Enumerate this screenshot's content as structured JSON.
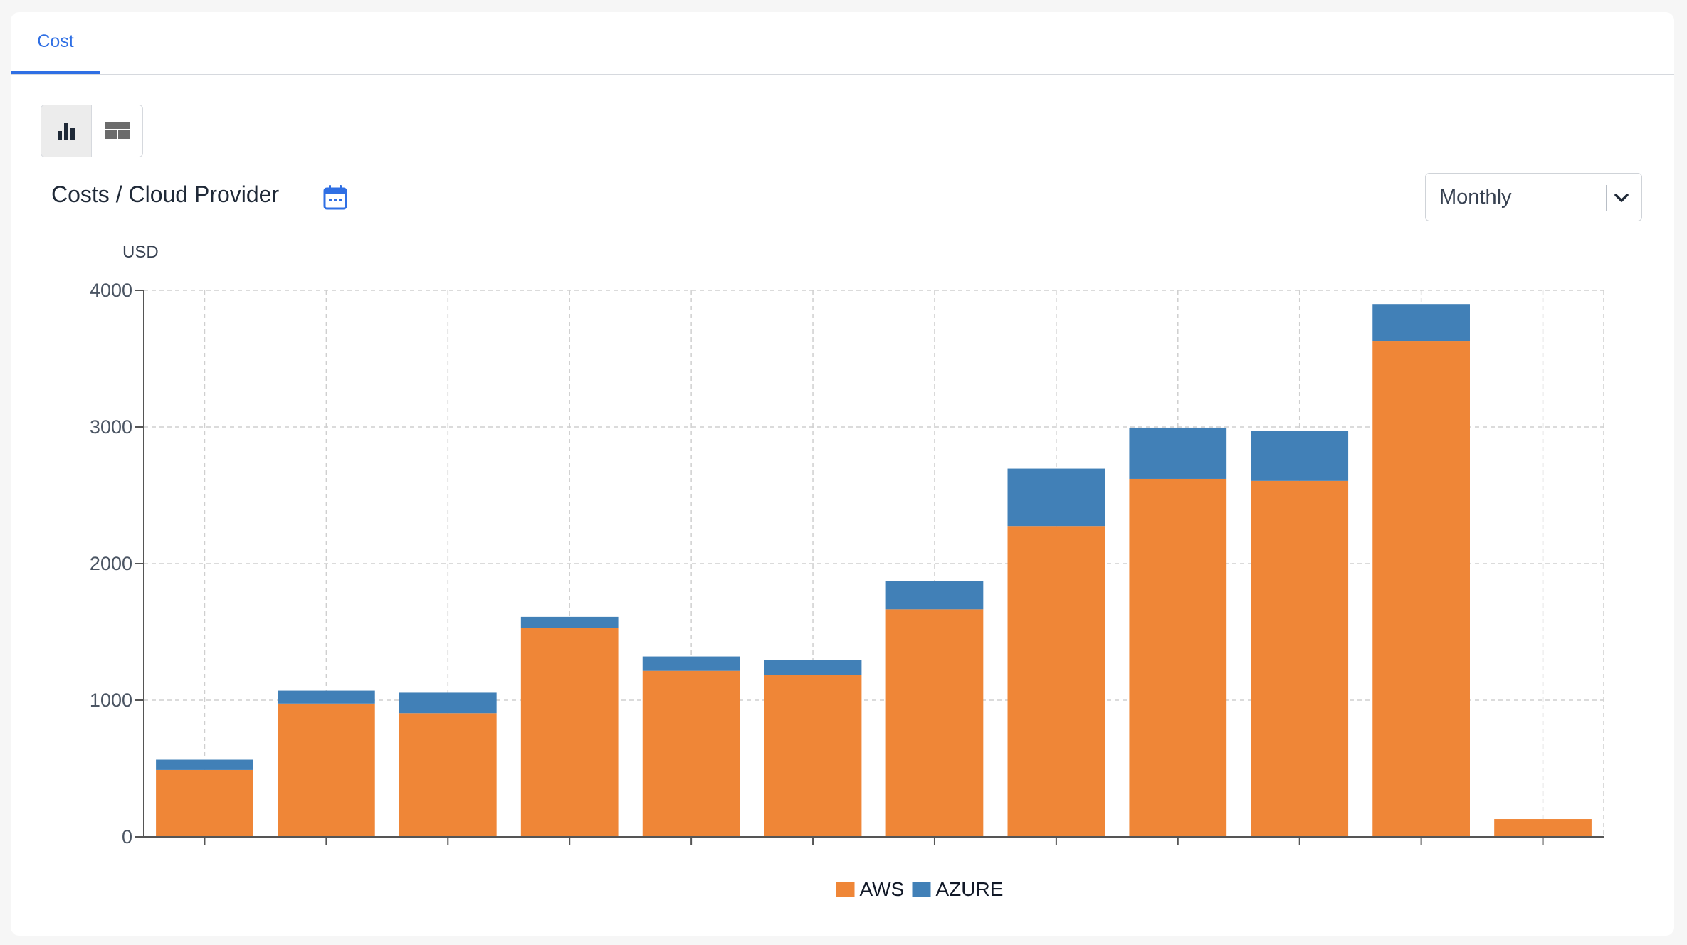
{
  "tabs": [
    {
      "label": "Cost",
      "active": true
    }
  ],
  "view_toggle": [
    {
      "icon": "bar-chart-icon",
      "active": true
    },
    {
      "icon": "table-icon",
      "active": false
    }
  ],
  "chart_title": "Costs / Cloud Provider",
  "calendar_icon": "calendar-icon",
  "period_select": {
    "value": "Monthly",
    "icon": "chevron-down-icon"
  },
  "colors": {
    "accent": "#2f6fe4",
    "aws": "#ef8637",
    "azure": "#4180b7"
  },
  "chart_data": {
    "type": "bar",
    "stacked": true,
    "title": "Costs / Cloud Provider",
    "ylabel": "USD",
    "xlabel": "",
    "ylim": [
      0,
      4000
    ],
    "yticks": [
      0,
      1000,
      2000,
      3000,
      4000
    ],
    "categories": [
      "",
      "",
      "",
      "",
      "",
      "",
      "",
      "",
      "",
      "",
      "",
      ""
    ],
    "series": [
      {
        "name": "AWS",
        "color": "#ef8637",
        "values": [
          490,
          975,
          905,
          1530,
          1215,
          1185,
          1665,
          2275,
          2620,
          2605,
          3630,
          130
        ]
      },
      {
        "name": "AZURE",
        "color": "#4180b7",
        "values": [
          75,
          95,
          150,
          80,
          105,
          110,
          210,
          420,
          375,
          365,
          270,
          0
        ]
      }
    ],
    "grid": true,
    "legend": "bottom-center"
  }
}
